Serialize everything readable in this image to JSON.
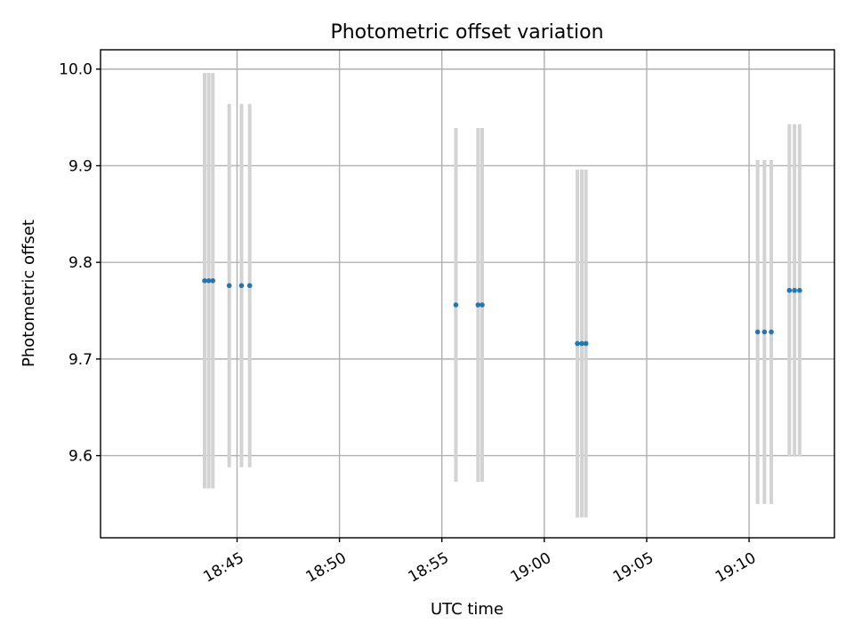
{
  "chart_data": {
    "type": "scatter",
    "title": "Photometric offset variation",
    "xlabel": "UTC time",
    "ylabel": "Photometric offset",
    "grid": true,
    "xlim": [
      "18:38:20",
      "19:14:10"
    ],
    "ylim": [
      9.515,
      10.02
    ],
    "x_ticks": [
      "18:45",
      "18:50",
      "18:55",
      "19:00",
      "19:05",
      "19:10"
    ],
    "y_ticks": [
      "9.6",
      "9.7",
      "9.8",
      "9.9",
      "10.0"
    ],
    "colors": {
      "points": "#1f77b4",
      "errorbars": "#d3d3d3"
    },
    "points": [
      {
        "x": "18:43:25",
        "y": 9.781,
        "yerr": 0.215
      },
      {
        "x": "18:43:37",
        "y": 9.781,
        "yerr": 0.215
      },
      {
        "x": "18:43:49",
        "y": 9.781,
        "yerr": 0.215
      },
      {
        "x": "18:44:37",
        "y": 9.776,
        "yerr": 0.188
      },
      {
        "x": "18:45:13",
        "y": 9.776,
        "yerr": 0.188
      },
      {
        "x": "18:45:37",
        "y": 9.776,
        "yerr": 0.188
      },
      {
        "x": "18:55:41",
        "y": 9.756,
        "yerr": 0.183
      },
      {
        "x": "18:56:46",
        "y": 9.756,
        "yerr": 0.183
      },
      {
        "x": "18:56:58",
        "y": 9.756,
        "yerr": 0.183
      },
      {
        "x": "19:01:37",
        "y": 9.716,
        "yerr": 0.18
      },
      {
        "x": "19:01:50",
        "y": 9.716,
        "yerr": 0.18
      },
      {
        "x": "19:02:02",
        "y": 9.716,
        "yerr": 0.18
      },
      {
        "x": "19:10:25",
        "y": 9.728,
        "yerr": 0.178
      },
      {
        "x": "19:10:45",
        "y": 9.728,
        "yerr": 0.178
      },
      {
        "x": "19:11:05",
        "y": 9.728,
        "yerr": 0.178
      },
      {
        "x": "19:11:58",
        "y": 9.771,
        "yerr": 0.172
      },
      {
        "x": "19:12:13",
        "y": 9.771,
        "yerr": 0.172
      },
      {
        "x": "19:12:28",
        "y": 9.771,
        "yerr": 0.172
      }
    ]
  }
}
